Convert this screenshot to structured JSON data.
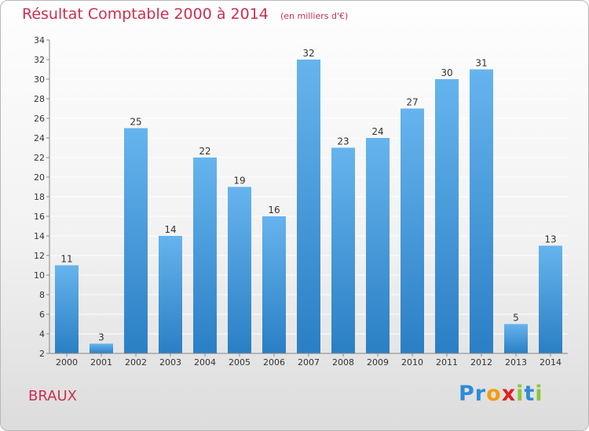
{
  "title": "Résultat Comptable 2000 à 2014",
  "unit_note": "(en milliers d'€)",
  "commune": "BRAUX",
  "logo": {
    "letters": [
      "P",
      "r",
      "o",
      "x",
      "i",
      "t",
      "i"
    ],
    "colors": [
      "#2e8bd8",
      "#2e8bd8",
      "#f39c12",
      "#e02020",
      "#8bc63e",
      "#2e8bd8",
      "#8bc63e"
    ]
  },
  "colors": {
    "bar_light": "#66b4ee",
    "bar_dark": "#2a7fc4",
    "title": "#c8304f",
    "grid": "#ffffff",
    "axis": "#888888"
  },
  "chart_data": {
    "type": "bar",
    "title": "Résultat Comptable 2000 à 2014",
    "subtitle": "(en milliers d'€)",
    "xlabel": "",
    "ylabel": "",
    "categories": [
      "2000",
      "2001",
      "2002",
      "2003",
      "2004",
      "2005",
      "2006",
      "2007",
      "2008",
      "2009",
      "2010",
      "2011",
      "2012",
      "2013",
      "2014"
    ],
    "values": [
      11,
      3,
      25,
      14,
      22,
      19,
      16,
      32,
      23,
      24,
      27,
      30,
      31,
      5,
      13
    ],
    "ylim": [
      2,
      34
    ],
    "yticks": [
      2,
      4,
      6,
      8,
      10,
      12,
      14,
      16,
      18,
      20,
      22,
      24,
      26,
      28,
      30,
      32,
      34
    ],
    "grid": true,
    "data_labels": [
      "11",
      "3",
      "25",
      "14",
      "22",
      "19",
      "16",
      "32",
      "23",
      "24",
      "27",
      "30",
      "31",
      "5",
      "13"
    ]
  }
}
